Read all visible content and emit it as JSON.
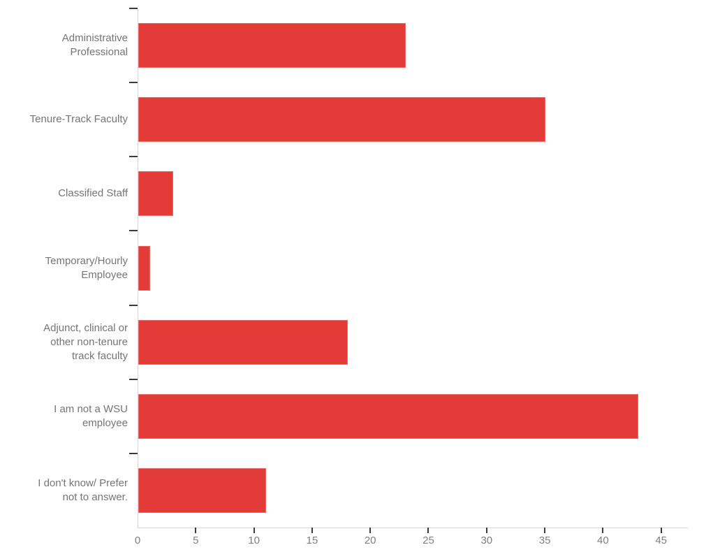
{
  "chart_data": {
    "type": "bar",
    "orientation": "horizontal",
    "title": "",
    "xlabel": "",
    "ylabel": "",
    "categories": [
      "Administrative Professional",
      "Tenure-Track Faculty",
      "Classified Staff",
      "Temporary/Hourly Employee",
      "Adjunct, clinical or other non-tenure track faculty",
      "I am not a WSU employee",
      "I don't know/ Prefer not to answer."
    ],
    "category_label_lines": [
      [
        "Administrative",
        "Professional"
      ],
      [
        "Tenure-Track Faculty"
      ],
      [
        "Classified Staff"
      ],
      [
        "Temporary/Hourly",
        "Employee"
      ],
      [
        "Adjunct, clinical or",
        "other non-tenure",
        "track faculty"
      ],
      [
        "I am not a WSU",
        "employee"
      ],
      [
        "I don't know/ Prefer",
        "not to answer."
      ]
    ],
    "values": [
      23,
      35,
      3,
      1,
      18,
      43,
      11
    ],
    "x_ticks": [
      0,
      5,
      10,
      15,
      20,
      25,
      30,
      35,
      40,
      45
    ],
    "xlim": [
      0,
      47.3
    ],
    "grid": false,
    "legend": false,
    "colors": {
      "bar": "#e23b38",
      "axis_line": "#d8d8d8",
      "tick_mark": "#3b3b3b",
      "category_label": "#757575",
      "tick_label": "#7e7e7e"
    }
  }
}
